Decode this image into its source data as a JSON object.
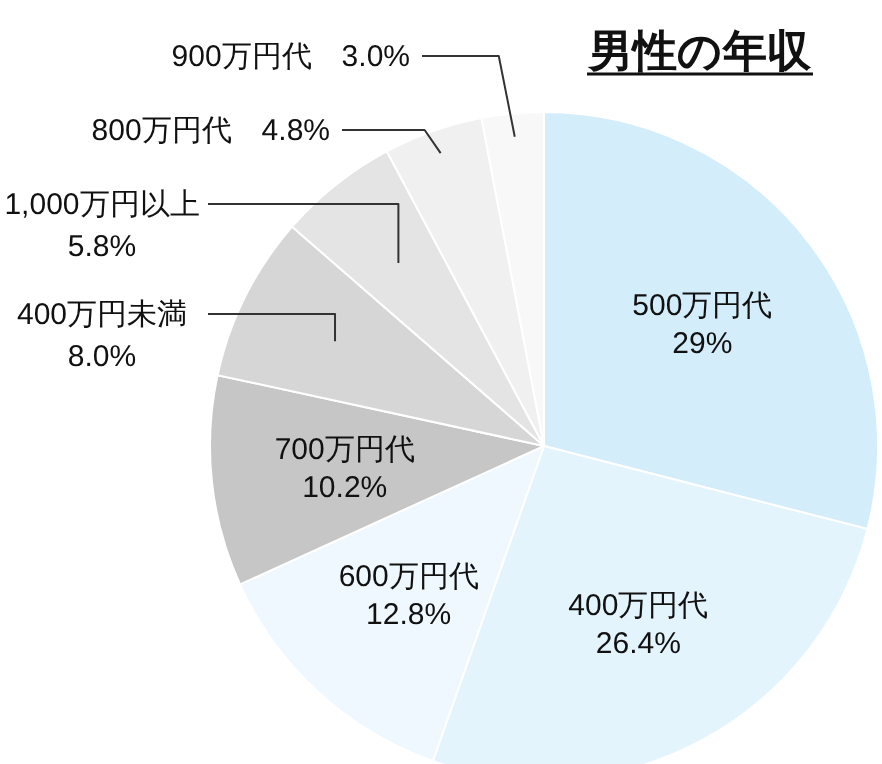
{
  "chart_data": {
    "type": "pie",
    "title": "男性の年収",
    "categories": [
      "500万円代",
      "400万円代",
      "600万円代",
      "700万円代",
      "400万円未満",
      "1,000万円以上",
      "800万円代",
      "900万円代"
    ],
    "values": [
      29,
      26.4,
      12.8,
      10.2,
      8.0,
      5.8,
      4.8,
      3.0
    ],
    "value_labels": [
      "29%",
      "26.4%",
      "12.8%",
      "10.2%",
      "8.0%",
      "5.8%",
      "4.8%",
      "3.0%"
    ],
    "colors": [
      "#d3edfb",
      "#e3f4fd",
      "#eef8fe",
      "#c6c6c6",
      "#d6d6d6",
      "#e4e4e4",
      "#f0f0f0",
      "#f8f8f8"
    ]
  }
}
